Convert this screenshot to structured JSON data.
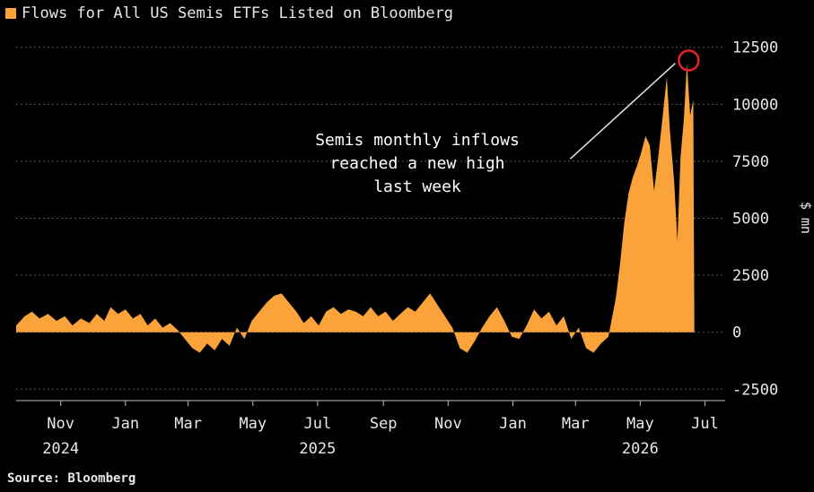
{
  "chart_data": {
    "type": "area",
    "title": "Flows for All US Semis ETFs Listed on Bloomberg",
    "ylabel": "$ mn",
    "source": "Source: Bloomberg",
    "ylim": [
      -3000,
      13000
    ],
    "yticks": [
      12500,
      10000,
      7500,
      5000,
      2500,
      0,
      -2500
    ],
    "ytick_labels": [
      "12500",
      "10000",
      "7500",
      "5000",
      "2500",
      "0",
      "-2500"
    ],
    "xlim": [
      "2024-09-20",
      "2026-07-20"
    ],
    "xticks": [
      {
        "label": "Nov",
        "date": "2024-11-01"
      },
      {
        "label": "Jan",
        "date": "2025-01-01"
      },
      {
        "label": "Mar",
        "date": "2025-03-01"
      },
      {
        "label": "May",
        "date": "2025-05-01"
      },
      {
        "label": "Jul",
        "date": "2025-07-01"
      },
      {
        "label": "Sep",
        "date": "2025-09-01"
      },
      {
        "label": "Nov",
        "date": "2025-11-01"
      },
      {
        "label": "Jan",
        "date": "2026-01-01"
      },
      {
        "label": "Mar",
        "date": "2026-03-01"
      },
      {
        "label": "May",
        "date": "2026-05-01"
      },
      {
        "label": "Jul",
        "date": "2026-07-01"
      }
    ],
    "years": [
      {
        "label": "2024",
        "date": "2024-11-01"
      },
      {
        "label": "2025",
        "date": "2025-07-01"
      },
      {
        "label": "2026",
        "date": "2026-05-01"
      }
    ],
    "series": [
      {
        "color": "#f9a33a",
        "points": [
          [
            "2024-09-20",
            300
          ],
          [
            "2024-09-28",
            700
          ],
          [
            "2024-10-05",
            900
          ],
          [
            "2024-10-12",
            600
          ],
          [
            "2024-10-20",
            800
          ],
          [
            "2024-10-28",
            500
          ],
          [
            "2024-11-05",
            700
          ],
          [
            "2024-11-12",
            300
          ],
          [
            "2024-11-20",
            600
          ],
          [
            "2024-11-28",
            400
          ],
          [
            "2024-12-05",
            800
          ],
          [
            "2024-12-12",
            500
          ],
          [
            "2024-12-18",
            1100
          ],
          [
            "2024-12-25",
            800
          ],
          [
            "2025-01-01",
            1000
          ],
          [
            "2025-01-08",
            600
          ],
          [
            "2025-01-15",
            800
          ],
          [
            "2025-01-22",
            300
          ],
          [
            "2025-01-29",
            600
          ],
          [
            "2025-02-05",
            200
          ],
          [
            "2025-02-12",
            400
          ],
          [
            "2025-02-19",
            100
          ],
          [
            "2025-02-26",
            -300
          ],
          [
            "2025-03-05",
            -700
          ],
          [
            "2025-03-12",
            -900
          ],
          [
            "2025-03-19",
            -500
          ],
          [
            "2025-03-26",
            -800
          ],
          [
            "2025-04-02",
            -300
          ],
          [
            "2025-04-09",
            -600
          ],
          [
            "2025-04-16",
            200
          ],
          [
            "2025-04-23",
            -300
          ],
          [
            "2025-04-30",
            500
          ],
          [
            "2025-05-07",
            900
          ],
          [
            "2025-05-14",
            1300
          ],
          [
            "2025-05-21",
            1600
          ],
          [
            "2025-05-28",
            1700
          ],
          [
            "2025-06-04",
            1300
          ],
          [
            "2025-06-11",
            900
          ],
          [
            "2025-06-18",
            400
          ],
          [
            "2025-06-25",
            700
          ],
          [
            "2025-07-02",
            300
          ],
          [
            "2025-07-09",
            900
          ],
          [
            "2025-07-16",
            1100
          ],
          [
            "2025-07-23",
            800
          ],
          [
            "2025-07-30",
            1000
          ],
          [
            "2025-08-06",
            900
          ],
          [
            "2025-08-13",
            700
          ],
          [
            "2025-08-20",
            1100
          ],
          [
            "2025-08-27",
            700
          ],
          [
            "2025-09-03",
            900
          ],
          [
            "2025-09-10",
            500
          ],
          [
            "2025-09-17",
            800
          ],
          [
            "2025-09-24",
            1100
          ],
          [
            "2025-10-01",
            900
          ],
          [
            "2025-10-08",
            1300
          ],
          [
            "2025-10-15",
            1700
          ],
          [
            "2025-10-22",
            1200
          ],
          [
            "2025-10-29",
            700
          ],
          [
            "2025-11-05",
            200
          ],
          [
            "2025-11-12",
            -700
          ],
          [
            "2025-11-19",
            -900
          ],
          [
            "2025-11-26",
            -400
          ],
          [
            "2025-12-03",
            200
          ],
          [
            "2025-12-10",
            700
          ],
          [
            "2025-12-17",
            1100
          ],
          [
            "2025-12-24",
            500
          ],
          [
            "2025-12-31",
            -200
          ],
          [
            "2026-01-07",
            -300
          ],
          [
            "2026-01-14",
            300
          ],
          [
            "2026-01-21",
            1000
          ],
          [
            "2026-01-28",
            600
          ],
          [
            "2026-02-04",
            900
          ],
          [
            "2026-02-11",
            300
          ],
          [
            "2026-02-18",
            700
          ],
          [
            "2026-02-25",
            -300
          ],
          [
            "2026-03-04",
            200
          ],
          [
            "2026-03-11",
            -700
          ],
          [
            "2026-03-18",
            -900
          ],
          [
            "2026-03-25",
            -500
          ],
          [
            "2026-04-01",
            -200
          ],
          [
            "2026-04-08",
            1500
          ],
          [
            "2026-04-12",
            3000
          ],
          [
            "2026-04-16",
            4800
          ],
          [
            "2026-04-20",
            6100
          ],
          [
            "2026-04-24",
            6800
          ],
          [
            "2026-04-28",
            7300
          ],
          [
            "2026-05-02",
            7900
          ],
          [
            "2026-05-06",
            8600
          ],
          [
            "2026-05-10",
            8200
          ],
          [
            "2026-05-14",
            6200
          ],
          [
            "2026-05-18",
            7700
          ],
          [
            "2026-05-22",
            9400
          ],
          [
            "2026-05-26",
            11200
          ],
          [
            "2026-05-29",
            8800
          ],
          [
            "2026-06-02",
            6600
          ],
          [
            "2026-06-05",
            4000
          ],
          [
            "2026-06-08",
            7700
          ],
          [
            "2026-06-11",
            9300
          ],
          [
            "2026-06-14",
            11800
          ],
          [
            "2026-06-17",
            9500
          ],
          [
            "2026-06-20",
            10200
          ],
          [
            "2026-06-21",
            0
          ]
        ]
      }
    ],
    "annotation": {
      "text_lines": [
        "Semis monthly inflows",
        "reached a new high",
        "last week"
      ],
      "target_date": "2026-06-14",
      "target_value": 12000,
      "marker_color": "#e8202a",
      "line_from_date": "2026-02-24",
      "line_from_value": 7600,
      "line_to_date": "2026-06-03",
      "line_to_value": 11800
    },
    "grid": true,
    "legend": "top-left"
  }
}
